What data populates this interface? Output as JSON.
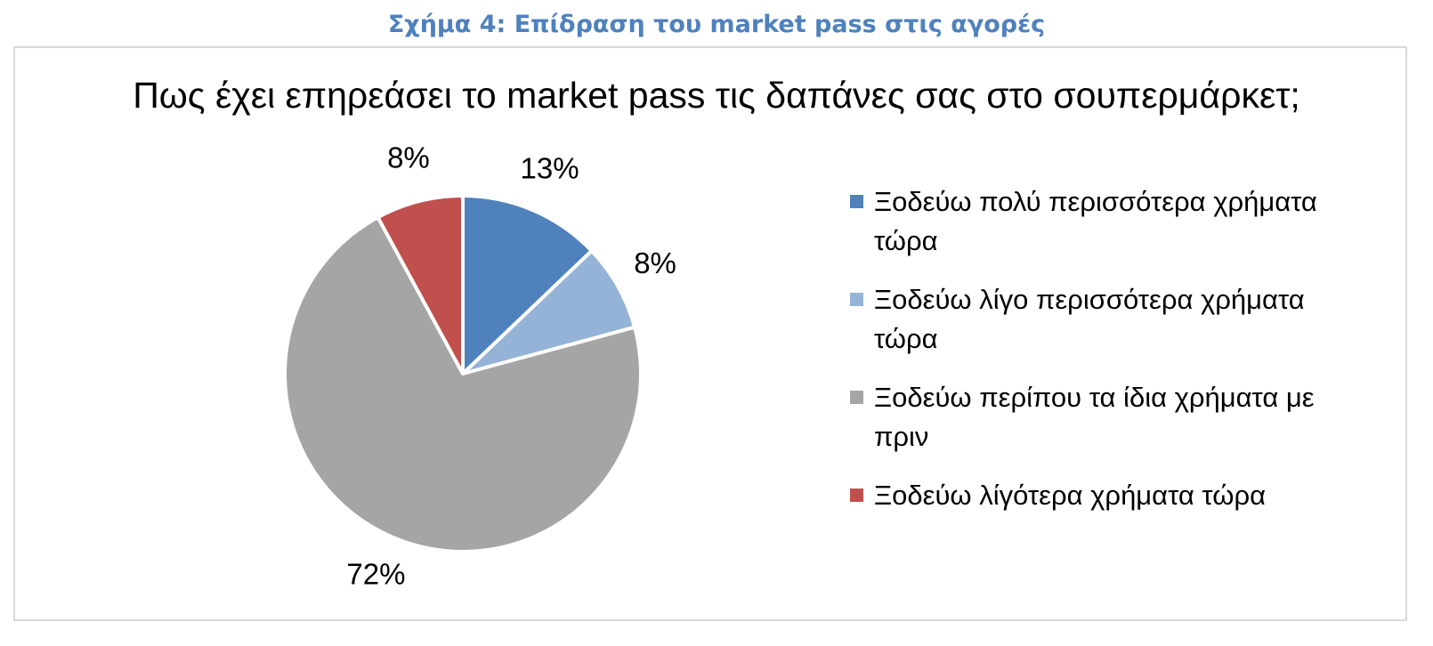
{
  "chart_data": {
    "type": "pie",
    "caption": "Σχήμα 4: Επίδραση του market pass στις αγορές",
    "title": "Πως έχει επηρεάσει το market pass τις δαπάνες σας στο σουπερμάρκετ;",
    "categories": [
      "Ξοδεύω πολύ περισσότερα χρήματα τώρα",
      "Ξοδεύω λίγο περισσότερα χρήματα τώρα",
      "Ξοδεύω περίπου τα ίδια χρήματα με πριν",
      "Ξοδεύω λίγότερα χρήματα τώρα"
    ],
    "values": [
      13,
      8,
      72,
      8
    ],
    "value_labels": [
      "13%",
      "8%",
      "72%",
      "8%"
    ],
    "colors": [
      "#4f81bd",
      "#95b3d7",
      "#a5a5a5",
      "#c0504d"
    ],
    "legend": "right"
  }
}
